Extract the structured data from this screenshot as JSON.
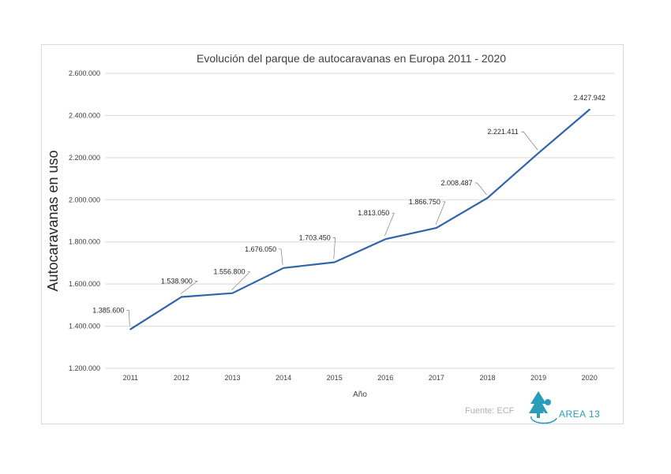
{
  "chart_data": {
    "type": "line",
    "title": "Evolución del parque de autocaravanas en Europa 2011 - 2020",
    "xlabel": "Año",
    "ylabel": "Autocaravanas en uso",
    "categories": [
      "2011",
      "2012",
      "2013",
      "2014",
      "2015",
      "2016",
      "2017",
      "2018",
      "2019",
      "2020"
    ],
    "series": [
      {
        "values": [
          1385600,
          1538900,
          1556800,
          1676050,
          1703450,
          1813050,
          1866750,
          2008487,
          2221411,
          2427942
        ],
        "color": "#2e64a8"
      }
    ],
    "data_labels": [
      "1.385.600",
      "1.538.900",
      "1.556.800",
      "1.676.050",
      "1.703.450",
      "1.813.050",
      "1.866.750",
      "2.008.487",
      "2.221.411",
      "2.427.942"
    ],
    "ylim": [
      1200000,
      2600000
    ],
    "yticks": [
      1200000,
      1400000,
      1600000,
      1800000,
      2000000,
      2200000,
      2400000,
      2600000
    ],
    "ytick_labels": [
      "1.200.000",
      "1.400.000",
      "1.600.000",
      "1.800.000",
      "2.000.000",
      "2.200.000",
      "2.400.000",
      "2.600.000"
    ],
    "grid": true,
    "legend": "none"
  },
  "source_text": "Fuente: ECF",
  "logo": {
    "text": "AREA 13",
    "icon": "tree-logo-icon",
    "color": "#2a9db9"
  },
  "colors": {
    "line": "#2e64a8",
    "grid": "#d9d9d9",
    "leader": "#7f7f7f"
  }
}
